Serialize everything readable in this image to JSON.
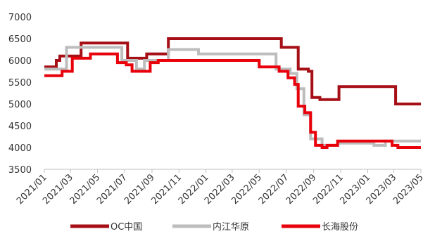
{
  "chart_data": {
    "type": "line",
    "interpolation": "step",
    "x_ticks": [
      "2021/01",
      "2021/03",
      "2021/05",
      "2021/07",
      "2021/09",
      "2021/11",
      "2022/01",
      "2022/03",
      "2022/05",
      "2022/07",
      "2022/09",
      "2022/11",
      "2023/01",
      "2023/03",
      "2023/05"
    ],
    "x_range": [
      "2021-01-01",
      "2023-05-01"
    ],
    "ylim": [
      3500,
      7000
    ],
    "y_ticks": [
      3500,
      4000,
      4500,
      5000,
      5500,
      6000,
      6500,
      7000
    ],
    "grid": false,
    "legend_position": "bottom",
    "series": [
      {
        "name": "OC中国",
        "color": "#a50f15",
        "points": [
          [
            "2021-01-01",
            5850
          ],
          [
            "2021-01-28",
            6000
          ],
          [
            "2021-02-05",
            6100
          ],
          [
            "2021-03-25",
            6400
          ],
          [
            "2021-07-08",
            6050
          ],
          [
            "2021-08-20",
            6150
          ],
          [
            "2021-10-08",
            6500
          ],
          [
            "2022-06-20",
            6300
          ],
          [
            "2022-07-28",
            5800
          ],
          [
            "2022-08-20",
            5750
          ],
          [
            "2022-08-28",
            5150
          ],
          [
            "2022-09-15",
            5100
          ],
          [
            "2022-10-28",
            5400
          ],
          [
            "2023-03-05",
            5000
          ],
          [
            "2023-05-01",
            5000
          ]
        ]
      },
      {
        "name": "内江华原",
        "color": "#bdbdbd",
        "points": [
          [
            "2021-01-01",
            5800
          ],
          [
            "2021-02-20",
            6300
          ],
          [
            "2021-06-25",
            6000
          ],
          [
            "2021-07-28",
            5800
          ],
          [
            "2021-08-15",
            6000
          ],
          [
            "2021-10-08",
            6250
          ],
          [
            "2021-12-15",
            6150
          ],
          [
            "2022-06-08",
            5800
          ],
          [
            "2022-07-10",
            5700
          ],
          [
            "2022-07-25",
            5350
          ],
          [
            "2022-08-10",
            4750
          ],
          [
            "2022-08-25",
            4200
          ],
          [
            "2022-09-20",
            4050
          ],
          [
            "2022-10-25",
            4100
          ],
          [
            "2023-01-15",
            4050
          ],
          [
            "2023-02-10",
            4150
          ],
          [
            "2023-05-01",
            4150
          ]
        ]
      },
      {
        "name": "长海股份",
        "color": "#e8000b",
        "points": [
          [
            "2021-01-01",
            5650
          ],
          [
            "2021-02-10",
            5750
          ],
          [
            "2021-03-05",
            6050
          ],
          [
            "2021-04-15",
            6150
          ],
          [
            "2021-06-15",
            5950
          ],
          [
            "2021-07-05",
            5900
          ],
          [
            "2021-07-18",
            5750
          ],
          [
            "2021-08-28",
            5950
          ],
          [
            "2021-09-15",
            6000
          ],
          [
            "2022-05-01",
            5850
          ],
          [
            "2022-06-15",
            5750
          ],
          [
            "2022-07-05",
            5600
          ],
          [
            "2022-07-20",
            5450
          ],
          [
            "2022-07-28",
            4950
          ],
          [
            "2022-08-12",
            4800
          ],
          [
            "2022-08-25",
            4350
          ],
          [
            "2022-09-05",
            4050
          ],
          [
            "2022-09-20",
            4000
          ],
          [
            "2022-10-01",
            4050
          ],
          [
            "2022-10-25",
            4150
          ],
          [
            "2023-02-25",
            4050
          ],
          [
            "2023-03-10",
            4000
          ],
          [
            "2023-05-01",
            4000
          ]
        ]
      }
    ]
  }
}
